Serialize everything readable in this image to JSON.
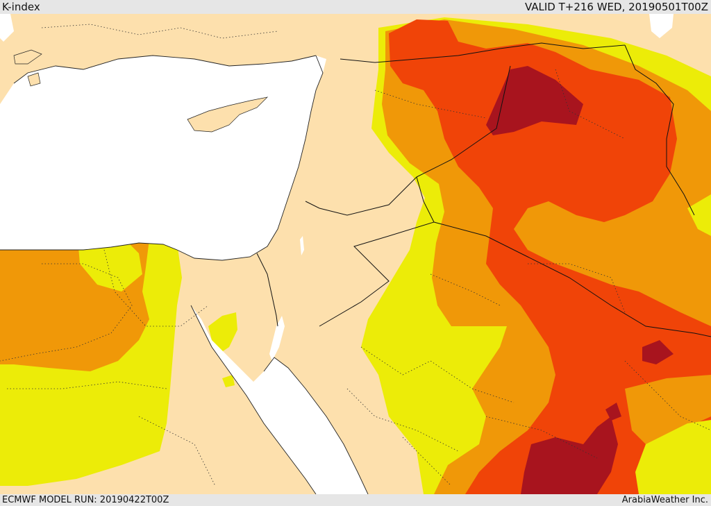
{
  "header": {
    "product": "K-index",
    "valid": "VALID T+216 WED, 20190501T00Z"
  },
  "footer": {
    "model_run": "ECMWF MODEL RUN: 20190422T00Z",
    "credit": "ArabiaWeather Inc."
  },
  "colors": {
    "land": "#fde0ad",
    "sea": "#ffffff",
    "k_yellow": "#ecec08",
    "k_orange": "#f09808",
    "k_red": "#f04408",
    "k_darkred": "#a8141e",
    "frame": "#e6e6e6"
  }
}
